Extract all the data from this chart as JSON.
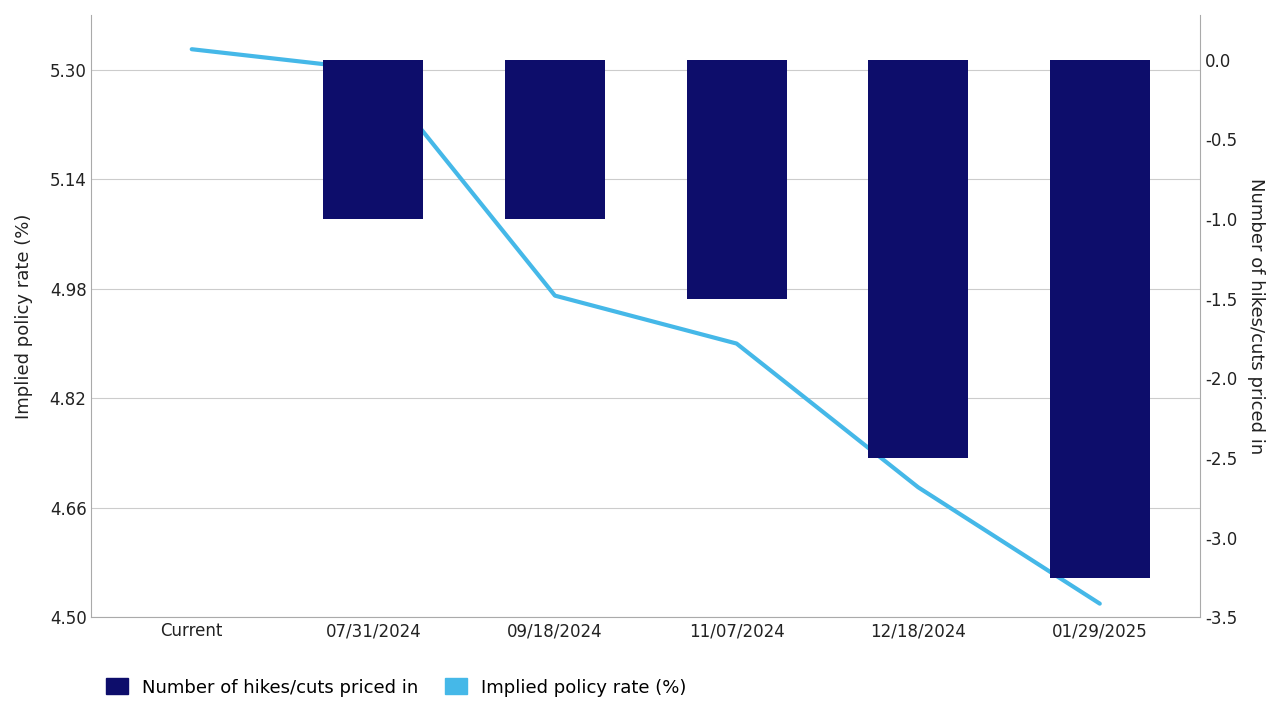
{
  "categories": [
    "Current",
    "07/31/2024",
    "09/18/2024",
    "11/07/2024",
    "12/18/2024",
    "01/29/2025"
  ],
  "bar_values": [
    0.0,
    -1.0,
    -1.0,
    -1.5,
    -2.5,
    -3.25
  ],
  "line_values": [
    5.33,
    5.3,
    4.97,
    4.9,
    4.69,
    4.52
  ],
  "bar_color": "#0d0d6b",
  "line_color": "#45b8e8",
  "left_ylim": [
    4.5,
    5.38
  ],
  "left_yticks": [
    4.5,
    4.66,
    4.82,
    4.98,
    5.14,
    5.3
  ],
  "right_ylim": [
    -3.5,
    0.28
  ],
  "right_yticks": [
    0.0,
    -0.5,
    -1.0,
    -1.5,
    -2.0,
    -2.5,
    -3.0,
    -3.5
  ],
  "left_ylabel": "Implied policy rate (%)",
  "right_ylabel": "Number of hikes/cuts priced in",
  "legend_bar_label": "Number of hikes/cuts priced in",
  "legend_line_label": "Implied policy rate (%)",
  "background_color": "#ffffff",
  "grid_color": "#cccccc",
  "bar_width": 0.55,
  "line_width": 3.0,
  "label_fontsize": 13,
  "tick_fontsize": 12,
  "legend_fontsize": 13
}
